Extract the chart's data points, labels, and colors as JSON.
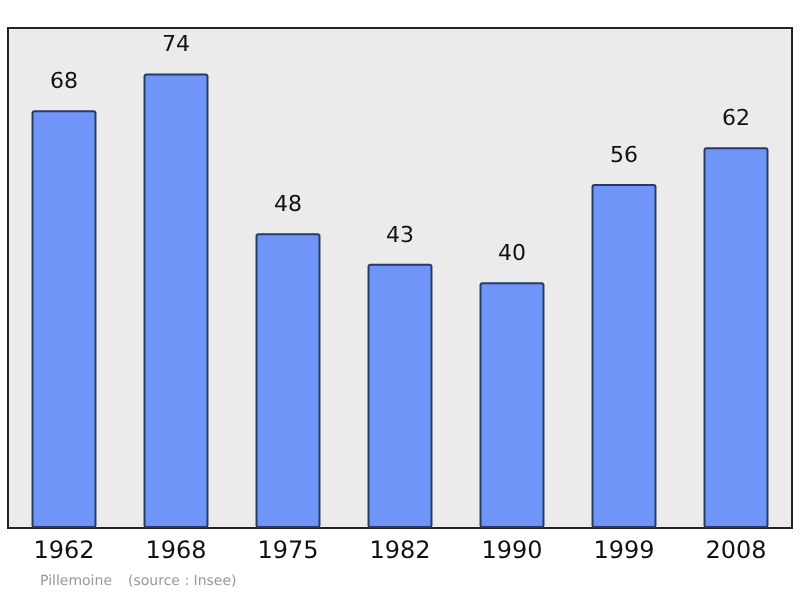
{
  "chart_data": {
    "type": "bar",
    "categories": [
      "1962",
      "1968",
      "1975",
      "1982",
      "1990",
      "1999",
      "2008"
    ],
    "values": [
      68,
      74,
      48,
      43,
      40,
      56,
      62
    ],
    "color": "#6f95f8",
    "data_labels": true,
    "tick_labels": "x",
    "annotations": [
      "Pillemoine",
      "(source : Insee)"
    ]
  }
}
